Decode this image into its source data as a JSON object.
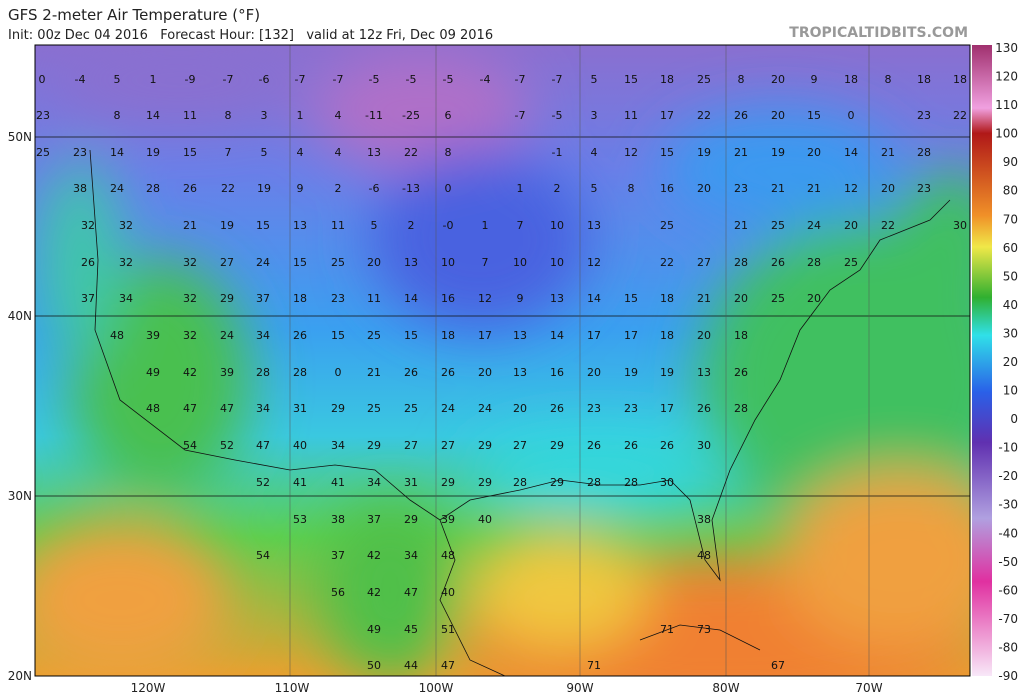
{
  "header": {
    "title": "GFS 2-meter Air Temperature (°F)",
    "subtitle": "Init: 00z Dec 04 2016   Forecast Hour: [132]   valid at 12z Fri, Dec 09 2016",
    "credit": "TROPICALTIDBITS.COM"
  },
  "map": {
    "lat_labels": [
      "50N",
      "40N",
      "30N",
      "20N"
    ],
    "lon_labels": [
      "120W",
      "110W",
      "100W",
      "90W",
      "80W",
      "70W"
    ],
    "temperature_rows": [
      [
        0,
        -4,
        5,
        1,
        -9,
        -7,
        -6,
        -7,
        -7,
        -5,
        -5,
        -5,
        -4,
        -7,
        -7,
        5,
        15,
        18,
        25,
        8,
        20,
        9,
        18,
        8,
        18,
        18
      ],
      [
        23,
        8,
        14,
        11,
        8,
        3,
        1,
        4,
        -11,
        -25,
        6,
        -7,
        -5,
        3,
        11,
        17,
        22,
        26,
        20,
        15,
        0,
        23,
        22
      ],
      [
        25,
        23,
        14,
        19,
        15,
        7,
        5,
        4,
        4,
        13,
        22,
        8,
        -1,
        4,
        12,
        15,
        19,
        21,
        19,
        20,
        14,
        21,
        28
      ],
      [
        38,
        24,
        28,
        26,
        22,
        19,
        9,
        2,
        -6,
        -13,
        0,
        1,
        2,
        5,
        8,
        16,
        20,
        23,
        21,
        21,
        12,
        20,
        23
      ],
      [
        32,
        32,
        21,
        19,
        15,
        13,
        11,
        5,
        2,
        "-0",
        1,
        7,
        10,
        13,
        25,
        21,
        25,
        24,
        20,
        22,
        30
      ],
      [
        26,
        32,
        32,
        27,
        24,
        15,
        25,
        20,
        13,
        10,
        7,
        10,
        10,
        12,
        22,
        27,
        28,
        26,
        28,
        25
      ],
      [
        37,
        34,
        32,
        29,
        37,
        18,
        23,
        11,
        14,
        16,
        12,
        9,
        13,
        14,
        15,
        18,
        21,
        20,
        25,
        20
      ],
      [
        48,
        39,
        32,
        24,
        34,
        26,
        15,
        25,
        15,
        18,
        17,
        13,
        14,
        17,
        17,
        18,
        20,
        18
      ],
      [
        49,
        42,
        39,
        28,
        28,
        0,
        21,
        26,
        26,
        20,
        13,
        16,
        20,
        19,
        19,
        13,
        26
      ],
      [
        48,
        47,
        47,
        34,
        31,
        29,
        25,
        25,
        24,
        24,
        20,
        26,
        23,
        23,
        17,
        26,
        28
      ],
      [
        54,
        52,
        47,
        40,
        34,
        29,
        27,
        27,
        29,
        27,
        29,
        26,
        26,
        26,
        30
      ],
      [
        52,
        41,
        41,
        34,
        31,
        29,
        29,
        28,
        29,
        28,
        28,
        30
      ],
      [
        53,
        38,
        37,
        29,
        39,
        40,
        38
      ],
      [
        54,
        37,
        42,
        34,
        48,
        48
      ],
      [
        56,
        42,
        47,
        40
      ],
      [
        49,
        45,
        51,
        71,
        73
      ],
      [
        50,
        44,
        47,
        71,
        67
      ]
    ]
  },
  "colorbar": {
    "labels": [
      130,
      120,
      110,
      100,
      90,
      80,
      70,
      60,
      50,
      40,
      30,
      20,
      10,
      0,
      -10,
      -20,
      -30,
      -40,
      -50,
      -60,
      -70,
      -80,
      -90
    ]
  }
}
